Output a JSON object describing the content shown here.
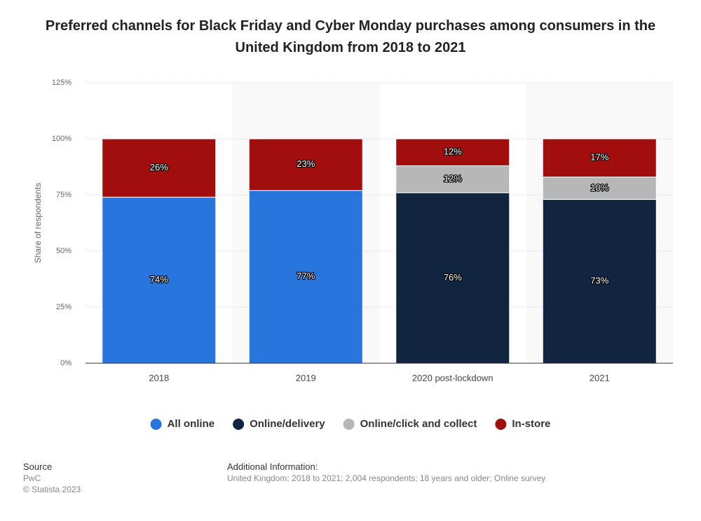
{
  "chart_data": {
    "type": "stacked-bar",
    "title": "Preferred channels for Black Friday and Cyber Monday purchases among consumers in the United Kingdom from 2018 to 2021",
    "y_label": "Share of respondents",
    "categories": [
      "2018",
      "2019",
      "2020 post-lockdown",
      "2021"
    ],
    "series": [
      {
        "name": "All online",
        "color": "#2876dd",
        "values": [
          74,
          77,
          null,
          null
        ],
        "value_labels": [
          "74%",
          "77%",
          null,
          null
        ]
      },
      {
        "name": "Online/delivery",
        "color": "#10253f",
        "values": [
          null,
          null,
          76,
          73
        ],
        "value_labels": [
          null,
          null,
          "76%",
          "73%"
        ]
      },
      {
        "name": "Online/click and collect",
        "color": "#b7b7b7",
        "values": [
          null,
          null,
          12,
          10
        ],
        "value_labels": [
          null,
          null,
          "12%",
          "10%"
        ]
      },
      {
        "name": "In-store",
        "color": "#a20e0e",
        "values": [
          26,
          23,
          12,
          17
        ],
        "value_labels": [
          "26%",
          "23%",
          "12%",
          "17%"
        ]
      }
    ],
    "ylim": [
      0,
      125
    ],
    "yticks": [
      {
        "value": 0,
        "label": "0%"
      },
      {
        "value": 25,
        "label": "25%"
      },
      {
        "value": 50,
        "label": "50%"
      },
      {
        "value": 75,
        "label": "75%"
      },
      {
        "value": 100,
        "label": "100%"
      },
      {
        "value": 125,
        "label": "125%"
      }
    ],
    "grid": true,
    "legend": "bottom"
  },
  "footer": {
    "source_heading": "Source",
    "source": "PwC",
    "copyright": "© Statista 2023",
    "info_heading": "Additional Information:",
    "info": "United Kingdom; 2018 to 2021; 2,004 respondents; 18 years and older; Online survey"
  }
}
